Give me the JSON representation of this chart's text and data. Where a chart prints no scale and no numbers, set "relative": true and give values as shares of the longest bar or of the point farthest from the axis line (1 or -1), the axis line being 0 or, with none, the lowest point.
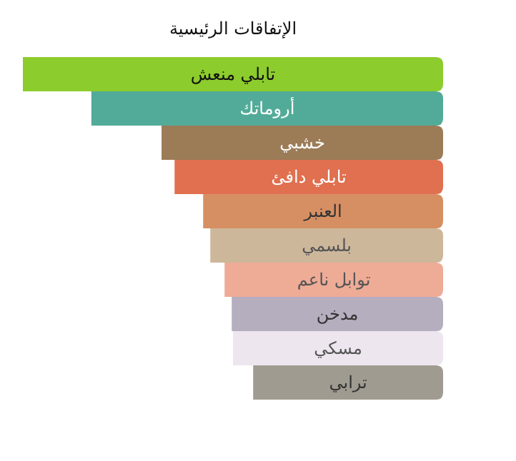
{
  "chart_data": {
    "type": "bar",
    "orientation": "horizontal",
    "relative": true,
    "title": "الإتفاقات الرئيسية",
    "categories": [
      "تابلي منعش",
      "أروماتك",
      "خشبي",
      "تابلي دافئ",
      "العنبر",
      "بلسمي",
      "توابل ناعم",
      "مدخن",
      "مسكي",
      "ترابي"
    ],
    "values": [
      1,
      0.837,
      0.67,
      0.639,
      0.571,
      0.554,
      0.52,
      0.503,
      0.5,
      0.452
    ],
    "colors": [
      "#8ccc2c",
      "#52ab98",
      "#9c7b57",
      "#e0704f",
      "#d68f63",
      "#cdb79b",
      "#eeab96",
      "#b5aebf",
      "#ede6ef",
      "#a09b91"
    ]
  }
}
